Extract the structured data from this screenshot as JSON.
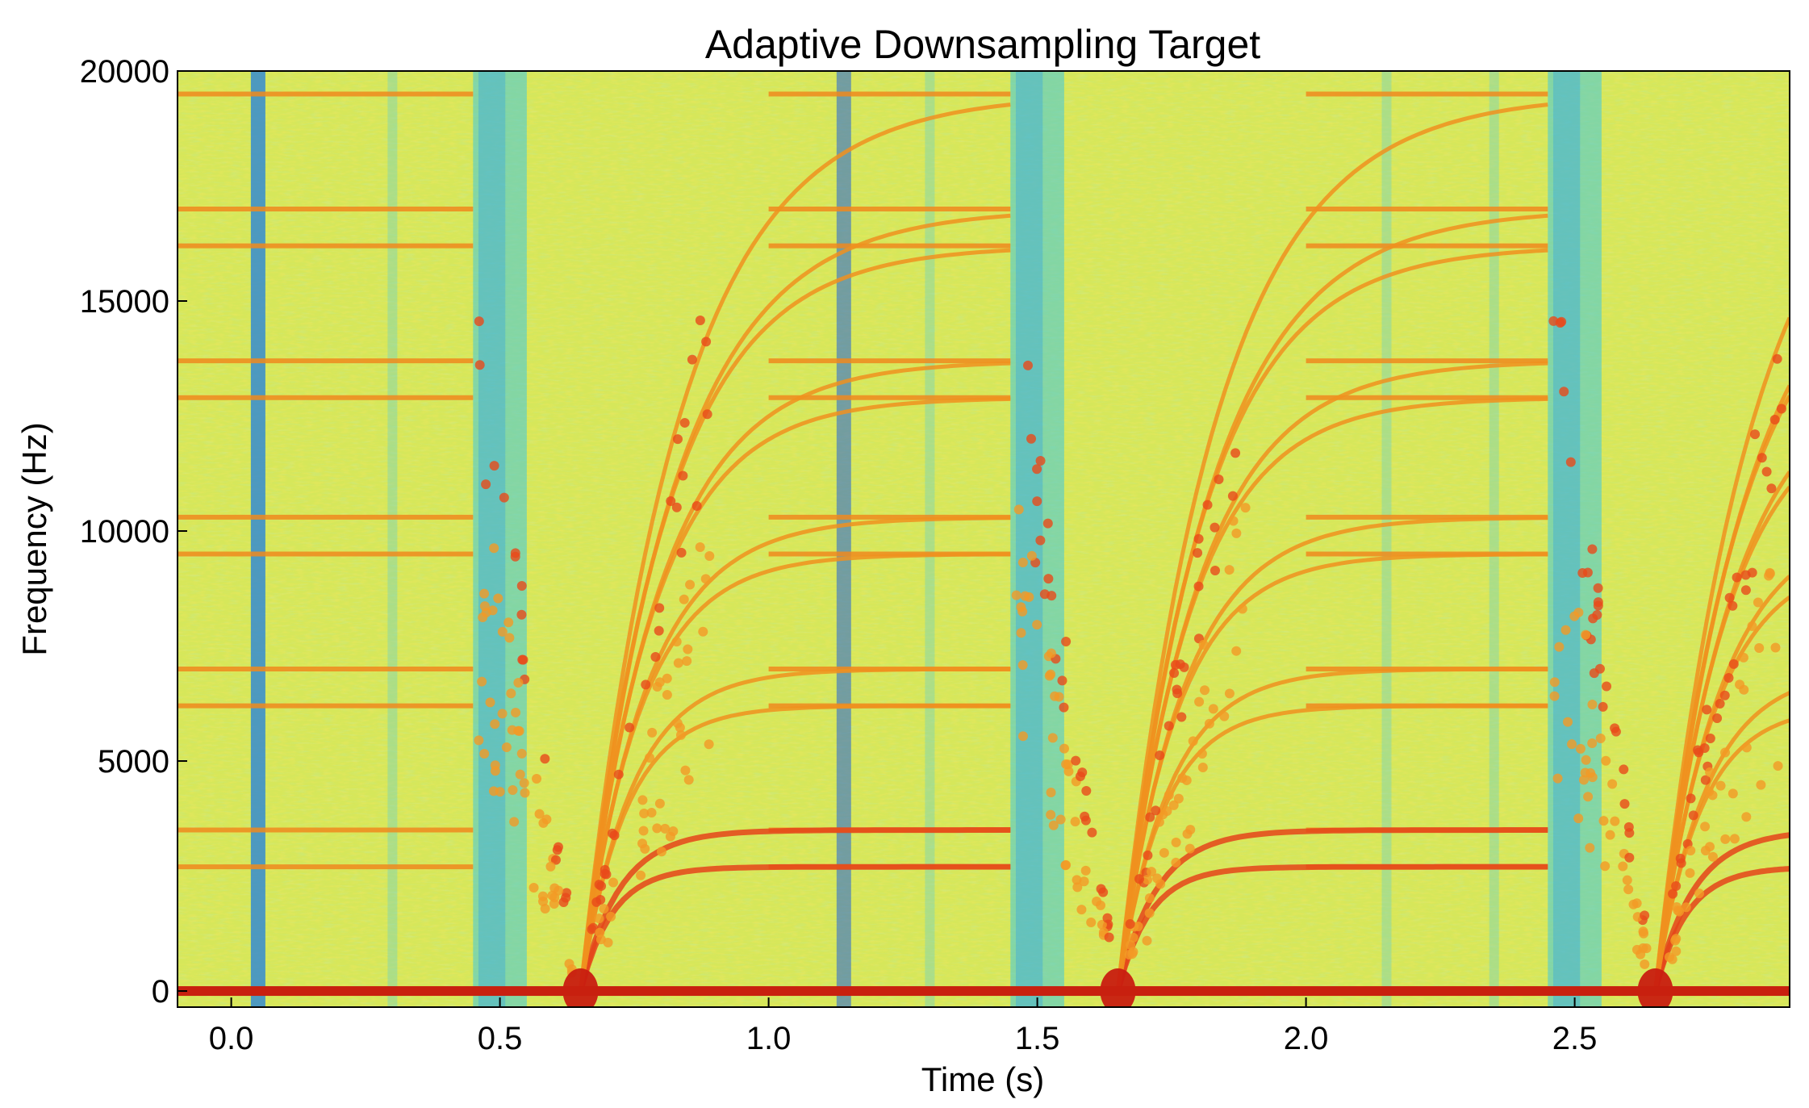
{
  "chart_data": {
    "type": "heatmap",
    "title": "Adaptive Downsampling Target",
    "xlabel": "Time (s)",
    "ylabel": "Frequency (Hz)",
    "xlim": [
      -0.1,
      2.9
    ],
    "ylim": [
      -350,
      20000
    ],
    "x_ticks": [
      {
        "value": 0.0,
        "label": "0.0"
      },
      {
        "value": 0.5,
        "label": "0.5"
      },
      {
        "value": 1.0,
        "label": "1.0"
      },
      {
        "value": 1.5,
        "label": "1.5"
      },
      {
        "value": 2.0,
        "label": "2.0"
      },
      {
        "value": 2.5,
        "label": "2.5"
      }
    ],
    "y_ticks": [
      {
        "value": 0,
        "label": "0"
      },
      {
        "value": 5000,
        "label": "5000"
      },
      {
        "value": 10000,
        "label": "10000"
      },
      {
        "value": 15000,
        "label": "15000"
      },
      {
        "value": 20000,
        "label": "20000"
      }
    ],
    "colormap": "jet",
    "background_color": "#d6e75a",
    "sweep_centers_s": [
      0.65,
      1.65,
      2.65
    ],
    "segment_boundaries_s": [
      0.45,
      1.45,
      2.45
    ],
    "tones_hz": [
      2700,
      3500,
      6200,
      7000,
      9500,
      10300,
      12900,
      13700,
      16200,
      17000,
      19500
    ],
    "dc_band_hz": 0,
    "grid": false,
    "legend": "none"
  }
}
